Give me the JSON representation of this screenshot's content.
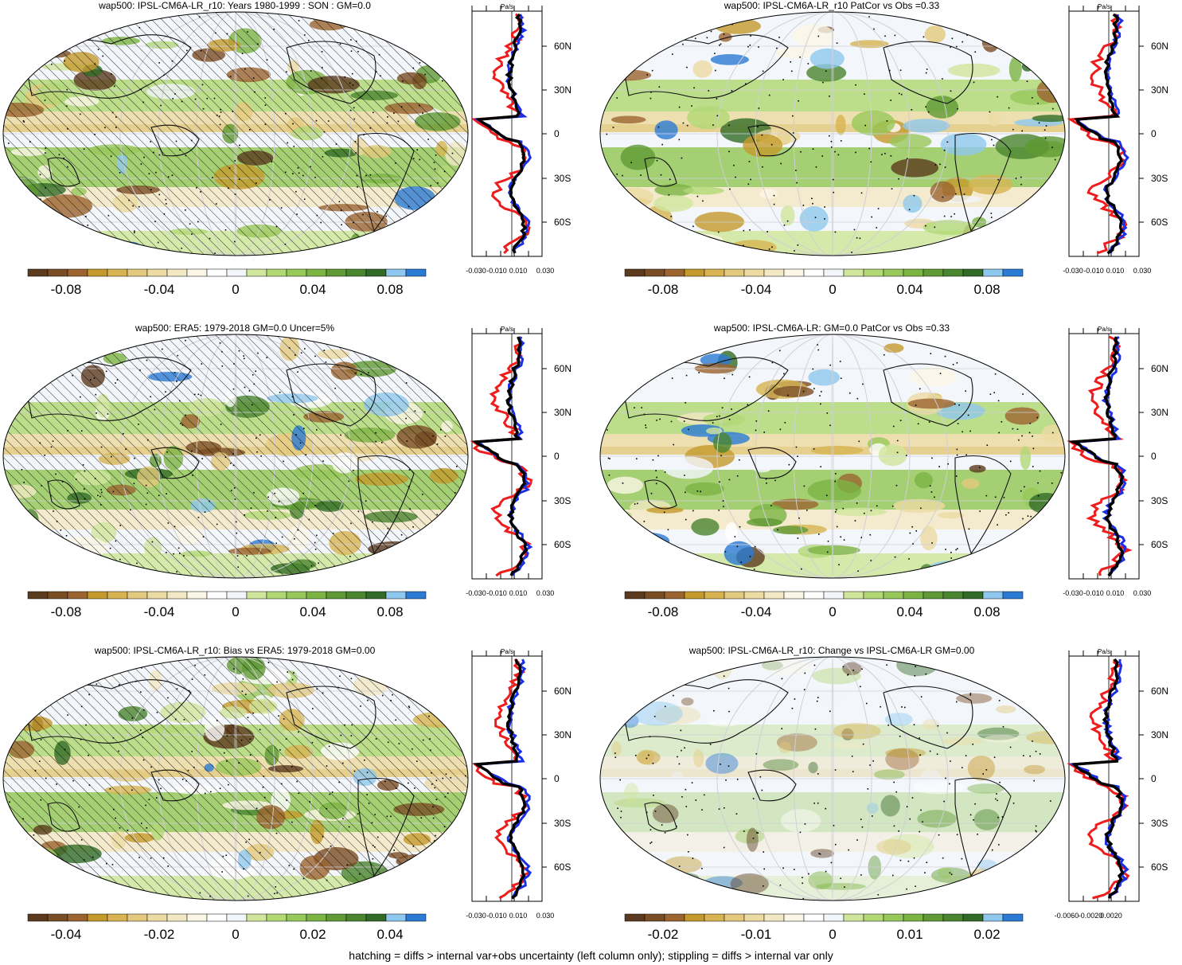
{
  "panels": [
    {
      "title": "wap500: IPSL-CM6A-LR_r10: Years 1980-1999 : SON : GM=0.0",
      "hatched": true,
      "colorbar_labels": [
        "-0.08",
        "-0.04",
        "0",
        "0.04",
        "0.08"
      ],
      "profile": {
        "unit": "Pa/s",
        "lat_labels": [
          "60N",
          "30N",
          "0",
          "30S",
          "60S"
        ],
        "x_labels": [
          "-0.030",
          "-0.010",
          "0.010",
          "0.030"
        ]
      }
    },
    {
      "title": "wap500: IPSL-CM6A-LR_r10 PatCor vs Obs =0.33",
      "hatched": false,
      "colorbar_labels": [
        "-0.08",
        "-0.04",
        "0",
        "0.04",
        "0.08"
      ],
      "profile": {
        "unit": "Pa/s",
        "lat_labels": [
          "60N",
          "30N",
          "0",
          "30S",
          "60S"
        ],
        "x_labels": [
          "-0.030",
          "-0.010",
          "0.010",
          "0.030"
        ]
      }
    },
    {
      "title": "wap500: ERA5: 1979-2018 GM=0.0 Uncer=5%",
      "hatched": true,
      "colorbar_labels": [
        "-0.08",
        "-0.04",
        "0",
        "0.04",
        "0.08"
      ],
      "profile": {
        "unit": "Pa/s",
        "lat_labels": [
          "60N",
          "30N",
          "0",
          "30S",
          "60S"
        ],
        "x_labels": [
          "-0.030",
          "-0.010",
          "0.010",
          "0.030"
        ]
      }
    },
    {
      "title": "wap500: IPSL-CM6A-LR: GM=0.0 PatCor vs Obs =0.33",
      "hatched": false,
      "colorbar_labels": [
        "-0.08",
        "-0.04",
        "0",
        "0.04",
        "0.08"
      ],
      "profile": {
        "unit": "Pa/s",
        "lat_labels": [
          "60N",
          "30N",
          "0",
          "30S",
          "60S"
        ],
        "x_labels": [
          "-0.030",
          "-0.010",
          "0.010",
          "0.030"
        ]
      }
    },
    {
      "title": "wap500: IPSL-CM6A-LR_r10: Bias vs ERA5: 1979-2018  GM=0.00",
      "hatched": true,
      "colorbar_labels": [
        "-0.04",
        "-0.02",
        "0",
        "0.02",
        "0.04"
      ],
      "profile": {
        "unit": "Pa/s",
        "lat_labels": [
          "60N",
          "30N",
          "0",
          "30S",
          "60S"
        ],
        "x_labels": [
          "-0.030",
          "-0.010",
          "0.010",
          "0.030"
        ]
      }
    },
    {
      "title": "wap500: IPSL-CM6A-LR_r10: Change vs IPSL-CM6A-LR GM=0.00",
      "hatched": false,
      "colorbar_labels": [
        "-0.02",
        "-0.01",
        "0",
        "0.01",
        "0.02"
      ],
      "profile": {
        "unit": "Pa/s",
        "lat_labels": [
          "60N",
          "30N",
          "0",
          "30S",
          "60S"
        ],
        "x_labels": [
          "-0.0060",
          "-0.0020",
          "0.0020"
        ]
      }
    }
  ],
  "footer": "hatching = diffs > internal var+obs uncertainty (left column only); stippling = diffs > internal var only",
  "colors": {
    "palette": [
      "#5b3a1e",
      "#7a4d25",
      "#9b6430",
      "#c49a2c",
      "#d7b451",
      "#e3c97d",
      "#ecdba2",
      "#f3e8c4",
      "#fbf6e6",
      "#ffffff",
      "#f2f6fb",
      "#cfe69c",
      "#b2d876",
      "#97c85a",
      "#7cb443",
      "#5f9a35",
      "#4a8530",
      "#326b27",
      "#8ec8ee",
      "#2b7bd4"
    ],
    "series": {
      "model": "#000000",
      "obs": "#1a2ee6",
      "diff": "#ee1c1c"
    }
  }
}
